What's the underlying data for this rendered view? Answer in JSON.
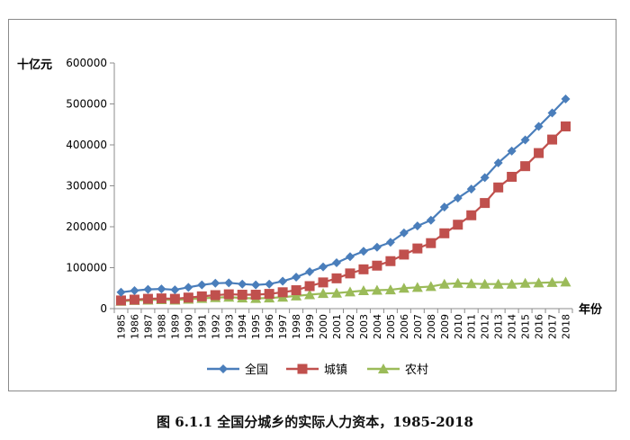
{
  "chart_data": {
    "type": "line",
    "title": "",
    "ylabel": "十亿元",
    "xlabel": "年份",
    "ylim": [
      0,
      600000
    ],
    "yticks": [
      "0",
      "100000",
      "200000",
      "300000",
      "400000",
      "500000",
      "600000"
    ],
    "yticks_values": [
      0,
      100000,
      200000,
      300000,
      400000,
      500000,
      600000
    ],
    "grid": false,
    "legend_position": "bottom",
    "categories": [
      "1985",
      "1986",
      "1987",
      "1988",
      "1989",
      "1990",
      "1991",
      "1992",
      "1993",
      "1994",
      "1995",
      "1996",
      "1997",
      "1998",
      "1999",
      "2000",
      "2001",
      "2002",
      "2003",
      "2004",
      "2005",
      "2006",
      "2007",
      "2008",
      "2009",
      "2010",
      "2011",
      "2012",
      "2013",
      "2014",
      "2015",
      "2016",
      "2017",
      "2018"
    ],
    "series": [
      {
        "name": "全国",
        "color": "#4a7ebb",
        "marker": "diamond",
        "values": [
          40000,
          44000,
          47000,
          48000,
          46000,
          52000,
          58000,
          62000,
          63000,
          60000,
          58000,
          60000,
          67000,
          77000,
          90000,
          102000,
          112000,
          127000,
          140000,
          150000,
          162000,
          185000,
          202000,
          216000,
          248000,
          270000,
          292000,
          320000,
          356000,
          385000,
          412000,
          445000,
          478000,
          512000
        ]
      },
      {
        "name": "城镇",
        "color": "#c0504d",
        "marker": "square",
        "values": [
          20000,
          22000,
          24000,
          25000,
          24000,
          27000,
          30000,
          33000,
          35000,
          34000,
          34000,
          36000,
          40000,
          45000,
          55000,
          64000,
          74000,
          86000,
          96000,
          105000,
          116000,
          132000,
          147000,
          160000,
          184000,
          205000,
          228000,
          258000,
          296000,
          322000,
          348000,
          380000,
          413000,
          445000
        ]
      },
      {
        "name": "农村",
        "color": "#9bbb59",
        "marker": "triangle",
        "values": [
          18000,
          20000,
          21000,
          22000,
          21000,
          23000,
          25000,
          27000,
          28000,
          26000,
          25000,
          26000,
          28000,
          31000,
          34000,
          37000,
          38000,
          41000,
          44000,
          45000,
          46000,
          50000,
          52000,
          54000,
          60000,
          62000,
          61000,
          60000,
          60000,
          60000,
          62000,
          63000,
          64000,
          65000
        ]
      }
    ]
  },
  "caption": "图 6.1.1 全国分城乡的实际人力资本，1985-2018"
}
